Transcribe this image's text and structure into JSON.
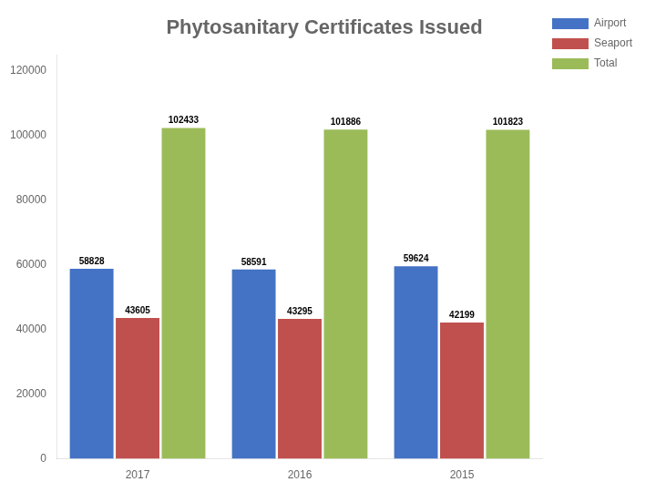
{
  "chart_data": {
    "type": "bar",
    "title": "Phytosanitary Certificates Issued",
    "categories": [
      "2017",
      "2016",
      "2015"
    ],
    "series": [
      {
        "name": "Airport",
        "color": "#4472C4",
        "values": [
          58828,
          58591,
          59624
        ]
      },
      {
        "name": "Seaport",
        "color": "#C0504D",
        "values": [
          43605,
          43295,
          42199
        ]
      },
      {
        "name": "Total",
        "color": "#9BBB59",
        "values": [
          102433,
          101886,
          101823
        ]
      }
    ],
    "ylim": [
      0,
      125000
    ],
    "yticks": [
      0,
      20000,
      40000,
      60000,
      80000,
      100000,
      120000
    ],
    "grid": false,
    "legend": "right",
    "data_labels": true
  }
}
